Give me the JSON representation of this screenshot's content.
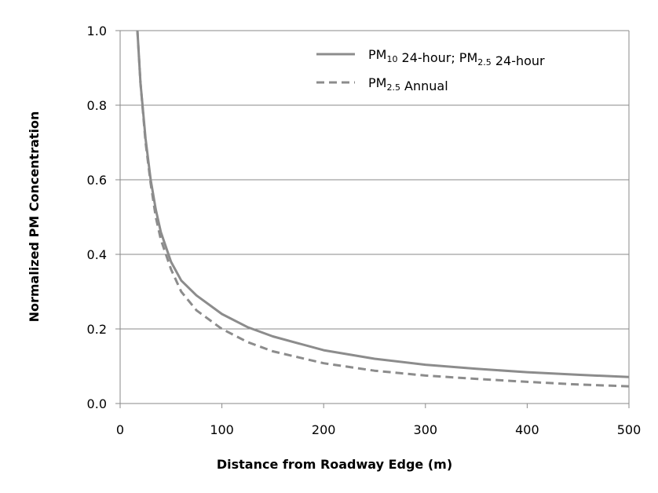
{
  "chart_data": {
    "type": "line",
    "title": "",
    "xlabel": "Distance from Roadway Edge (m)",
    "ylabel": "Normalized  PM Concentration",
    "xlim": [
      0,
      500
    ],
    "ylim": [
      0,
      1.0
    ],
    "x_ticks": [
      "0",
      "100",
      "200",
      "300",
      "400",
      "500"
    ],
    "y_ticks": [
      "0.0",
      "0.2",
      "0.4",
      "0.6",
      "0.8",
      "1.0"
    ],
    "grid": "horizontal",
    "legend_position": "top-right",
    "legend": [
      {
        "style": "solid",
        "parts": [
          {
            "text": "PM",
            "sub": false
          },
          {
            "text": "10",
            "sub": true
          },
          {
            "text": " 24-hour; PM",
            "sub": false
          },
          {
            "text": "2.5",
            "sub": true
          },
          {
            "text": " 24-hour",
            "sub": false
          }
        ]
      },
      {
        "style": "dashed",
        "parts": [
          {
            "text": "PM",
            "sub": false
          },
          {
            "text": "2.5",
            "sub": true
          },
          {
            "text": " Annual",
            "sub": false
          }
        ]
      }
    ],
    "series": [
      {
        "style": "solid",
        "color": "#8c8c8c",
        "x": [
          17,
          20,
          25,
          30,
          35,
          40,
          50,
          60,
          75,
          100,
          125,
          150,
          200,
          250,
          300,
          350,
          400,
          450,
          500
        ],
        "y": [
          1.0,
          0.86,
          0.71,
          0.6,
          0.52,
          0.46,
          0.38,
          0.33,
          0.29,
          0.24,
          0.205,
          0.18,
          0.143,
          0.12,
          0.104,
          0.093,
          0.084,
          0.077,
          0.071
        ]
      },
      {
        "style": "dashed",
        "color": "#8c8c8c",
        "x": [
          17,
          20,
          25,
          30,
          35,
          40,
          50,
          60,
          75,
          100,
          125,
          150,
          200,
          250,
          300,
          350,
          400,
          450,
          500
        ],
        "y": [
          1.0,
          0.86,
          0.7,
          0.59,
          0.5,
          0.44,
          0.36,
          0.3,
          0.25,
          0.2,
          0.165,
          0.14,
          0.108,
          0.088,
          0.075,
          0.066,
          0.058,
          0.051,
          0.046
        ]
      }
    ]
  }
}
